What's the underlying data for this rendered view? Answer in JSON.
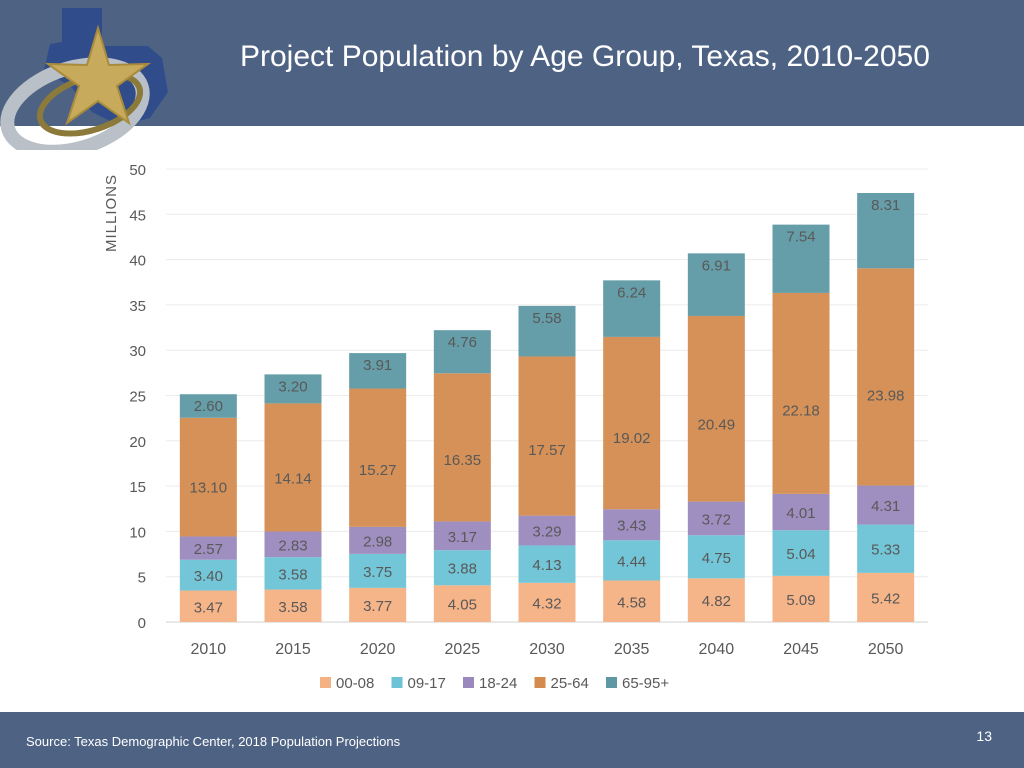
{
  "slide": {
    "title": "Project Population by Age Group, Texas, 2010-2050",
    "source": "Source: Texas Demographic Center, 2018 Population Projections",
    "page_number": "13"
  },
  "colors": {
    "header_bg": "#4e6384",
    "series": [
      "#f4b183",
      "#6cc3d5",
      "#9a89bd",
      "#d38b4e",
      "#5d98a3"
    ]
  },
  "chart_data": {
    "type": "bar",
    "stacked": true,
    "title": "Project Population by Age Group, Texas, 2010-2050",
    "xlabel": "",
    "ylabel": "MILLIONS",
    "ylim": [
      0,
      50
    ],
    "yticks": [
      0,
      5,
      10,
      15,
      20,
      25,
      30,
      35,
      40,
      45,
      50
    ],
    "categories": [
      "2010",
      "2015",
      "2020",
      "2025",
      "2030",
      "2035",
      "2040",
      "2045",
      "2050"
    ],
    "series": [
      {
        "name": "00-08",
        "values": [
          3.47,
          3.58,
          3.77,
          4.05,
          4.32,
          4.58,
          4.82,
          5.09,
          5.42
        ]
      },
      {
        "name": "09-17",
        "values": [
          3.4,
          3.58,
          3.75,
          3.88,
          4.13,
          4.44,
          4.75,
          5.04,
          5.33
        ]
      },
      {
        "name": "18-24",
        "values": [
          2.57,
          2.83,
          2.98,
          3.17,
          3.29,
          3.43,
          3.72,
          4.01,
          4.31
        ]
      },
      {
        "name": "25-64",
        "values": [
          13.1,
          14.14,
          15.27,
          16.35,
          17.57,
          19.02,
          20.49,
          22.18,
          23.98
        ]
      },
      {
        "name": "65-95+",
        "values": [
          2.6,
          3.2,
          3.91,
          4.76,
          5.58,
          6.24,
          6.91,
          7.54,
          8.31
        ]
      }
    ],
    "legend_position": "bottom",
    "grid": true
  }
}
